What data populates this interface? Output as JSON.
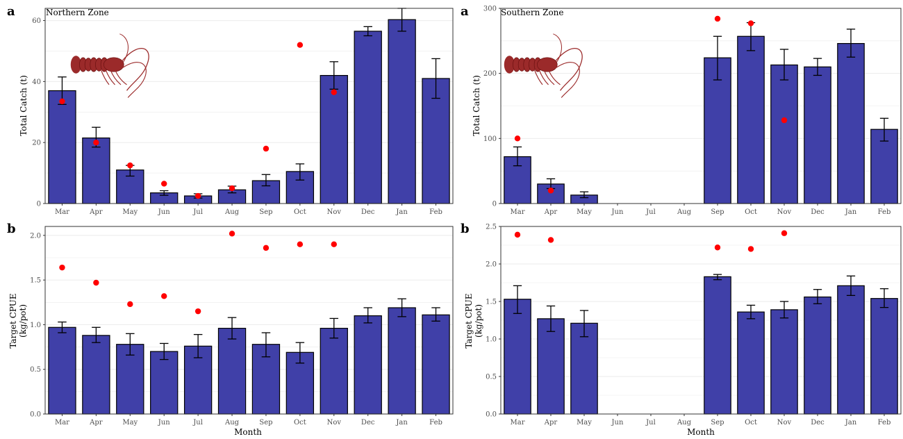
{
  "colors": {
    "bar_fill": "#4040A8",
    "bar_stroke": "#000000",
    "point": "#FF0000",
    "grid": "#EBEBEB",
    "panel_border": "#333333",
    "lobster": "#9B2A2A"
  },
  "axis_x_title": "Month",
  "chart_data": [
    {
      "id": "north-catch",
      "type": "bar",
      "panel_letter": "a",
      "zone_label": "Northern Zone",
      "ylabel": "Total Catch (t)",
      "ylim": [
        0,
        64
      ],
      "yticks": [
        0,
        20,
        40,
        60
      ],
      "categories": [
        "Mar",
        "Apr",
        "May",
        "Jun",
        "Jul",
        "Aug",
        "Sep",
        "Oct",
        "Nov",
        "Dec",
        "Jan",
        "Feb"
      ],
      "values": [
        37,
        21.5,
        11,
        3.5,
        2.5,
        4.5,
        7.5,
        10.5,
        42,
        56.5,
        60.3,
        41
      ],
      "error_low": [
        32.5,
        18.5,
        9,
        2.7,
        1.8,
        3.5,
        5.8,
        7.7,
        37.5,
        55,
        56.5,
        34.5
      ],
      "error_high": [
        41.5,
        25,
        12.5,
        4.2,
        3.2,
        5.7,
        9.5,
        13,
        46.5,
        58,
        64,
        47.5
      ],
      "points": [
        33.5,
        20,
        12.5,
        6.5,
        2.5,
        5,
        18,
        52,
        36.5,
        null,
        null,
        null
      ],
      "grid": true,
      "has_image": true
    },
    {
      "id": "south-catch",
      "type": "bar",
      "panel_letter": "a",
      "zone_label": "Southern Zone",
      "ylabel": "Total Catch (t)",
      "ylim": [
        0,
        300
      ],
      "yticks": [
        0,
        100,
        200,
        300
      ],
      "categories": [
        "Mar",
        "Apr",
        "May",
        "Jun",
        "Jul",
        "Aug",
        "Sep",
        "Oct",
        "Nov",
        "Dec",
        "Jan",
        "Feb"
      ],
      "values": [
        72,
        30,
        13,
        0,
        0,
        0,
        224,
        257,
        213,
        210,
        246,
        114
      ],
      "error_low": [
        58,
        23,
        9,
        null,
        null,
        null,
        190,
        235,
        190,
        197,
        225,
        96
      ],
      "error_high": [
        87,
        38,
        18,
        null,
        null,
        null,
        257,
        278,
        237,
        223,
        268,
        131
      ],
      "points": [
        100,
        20,
        null,
        null,
        null,
        null,
        284,
        277,
        128,
        null,
        null,
        null
      ],
      "grid": true,
      "has_image": true
    },
    {
      "id": "north-cpue",
      "type": "bar",
      "panel_letter": "b",
      "zone_label": "",
      "ylabel": "Target CPUE\n(kg/pot)",
      "ylim": [
        0,
        2.1
      ],
      "yticks": [
        0.0,
        0.5,
        1.0,
        1.5,
        2.0
      ],
      "ytick_decimals": 1,
      "categories": [
        "Mar",
        "Apr",
        "May",
        "Jun",
        "Jul",
        "Aug",
        "Sep",
        "Oct",
        "Nov",
        "Dec",
        "Jan",
        "Feb"
      ],
      "values": [
        0.97,
        0.88,
        0.78,
        0.7,
        0.76,
        0.96,
        0.78,
        0.69,
        0.96,
        1.1,
        1.19,
        1.11
      ],
      "error_low": [
        0.91,
        0.8,
        0.66,
        0.61,
        0.63,
        0.84,
        0.64,
        0.57,
        0.85,
        1.02,
        1.09,
        1.04
      ],
      "error_high": [
        1.03,
        0.97,
        0.9,
        0.79,
        0.89,
        1.08,
        0.91,
        0.8,
        1.07,
        1.19,
        1.29,
        1.19
      ],
      "points": [
        1.64,
        1.47,
        1.23,
        1.32,
        1.15,
        2.02,
        1.86,
        1.9,
        1.9,
        null,
        null,
        null
      ],
      "grid": true,
      "has_image": false
    },
    {
      "id": "south-cpue",
      "type": "bar",
      "panel_letter": "b",
      "zone_label": "",
      "ylabel": "Target CPUE\n(kg/pot)",
      "ylim": [
        0,
        2.5
      ],
      "yticks": [
        0.0,
        0.5,
        1.0,
        1.5,
        2.0,
        2.5
      ],
      "ytick_decimals": 1,
      "categories": [
        "Mar",
        "Apr",
        "May",
        "Jun",
        "Jul",
        "Aug",
        "Sep",
        "Oct",
        "Nov",
        "Dec",
        "Jan",
        "Feb"
      ],
      "values": [
        1.53,
        1.27,
        1.21,
        0,
        0,
        0,
        1.83,
        1.36,
        1.39,
        1.56,
        1.71,
        1.54
      ],
      "error_low": [
        1.34,
        1.1,
        1.03,
        null,
        null,
        null,
        1.79,
        1.27,
        1.28,
        1.47,
        1.58,
        1.42
      ],
      "error_high": [
        1.71,
        1.44,
        1.38,
        null,
        null,
        null,
        1.86,
        1.45,
        1.5,
        1.66,
        1.84,
        1.67
      ],
      "points": [
        2.39,
        2.32,
        null,
        null,
        null,
        null,
        2.22,
        2.2,
        2.41,
        null,
        null,
        null
      ],
      "grid": true,
      "has_image": false
    }
  ]
}
